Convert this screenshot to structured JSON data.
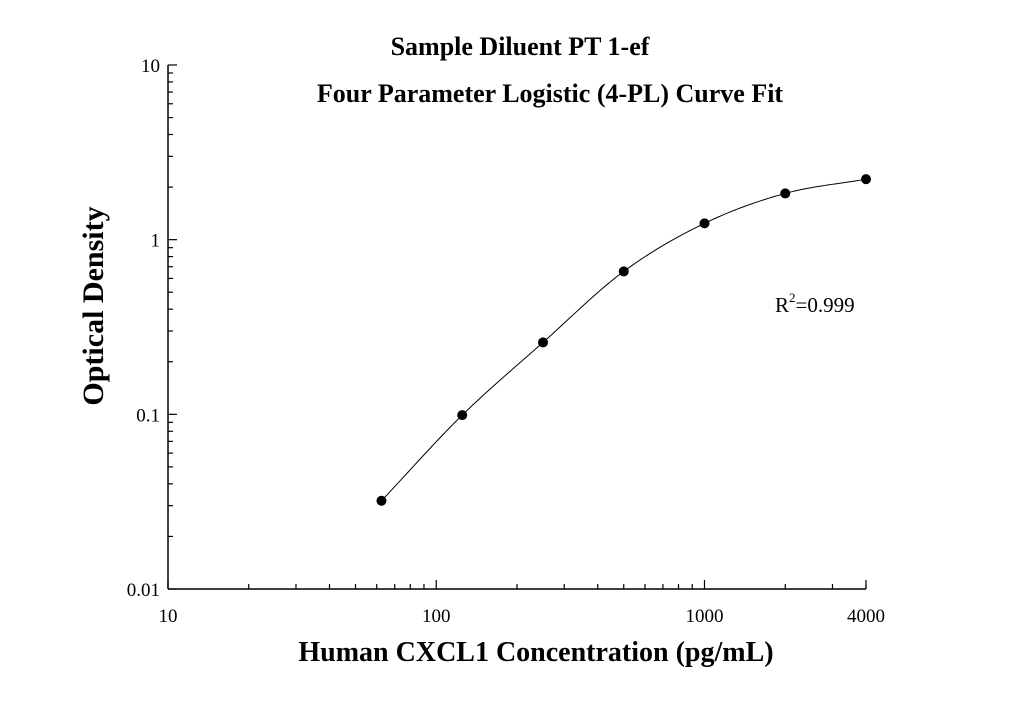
{
  "chart_data": {
    "type": "scatter",
    "title": "Sample Diluent PT 1-ef",
    "subtitle": "Four Parameter Logistic (4-PL) Curve Fit",
    "xlabel": "Human CXCL1 Concentration (pg/mL)",
    "ylabel": "Optical Density",
    "x_scale": "log",
    "y_scale": "log",
    "xlim": [
      10,
      4000
    ],
    "ylim": [
      0.01,
      10
    ],
    "x_ticks": [
      {
        "value": 10,
        "label": "10"
      },
      {
        "value": 100,
        "label": "100"
      },
      {
        "value": 1000,
        "label": "1000"
      },
      {
        "value": 4000,
        "label": "4000"
      }
    ],
    "y_ticks": [
      {
        "value": 0.01,
        "label": "0.01"
      },
      {
        "value": 0.1,
        "label": "0.1"
      },
      {
        "value": 1,
        "label": "1"
      },
      {
        "value": 10,
        "label": "10"
      }
    ],
    "grid": false,
    "series": [
      {
        "x": [
          62.5,
          125,
          250,
          500,
          1000,
          2000,
          4000
        ],
        "y": [
          0.032,
          0.099,
          0.258,
          0.658,
          1.24,
          1.84,
          2.22
        ]
      }
    ],
    "fit": {
      "model": "4-PL",
      "x_range": [
        62.5,
        4000
      ],
      "r_squared_label": "R",
      "r_squared_sup": "2",
      "r_squared_value": "=0.999"
    }
  }
}
